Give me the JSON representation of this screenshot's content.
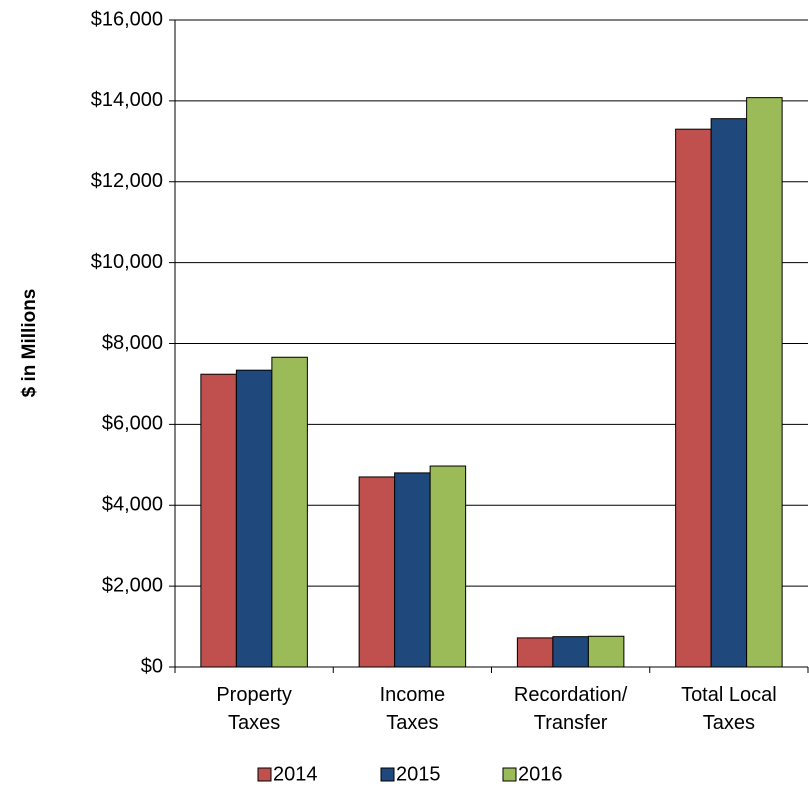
{
  "chart_data": {
    "type": "bar",
    "y_label": "$ in Millions",
    "categories": [
      [
        "Property",
        "Taxes"
      ],
      [
        "Income",
        "Taxes"
      ],
      [
        "Recordation/",
        "Transfer"
      ],
      [
        "Total Local",
        "Taxes"
      ]
    ],
    "series": [
      {
        "name": "2014",
        "color": "#c0504d",
        "values": [
          7240,
          4700,
          720,
          13300
        ]
      },
      {
        "name": "2015",
        "color": "#1f497d",
        "values": [
          7340,
          4800,
          750,
          13560
        ]
      },
      {
        "name": "2016",
        "color": "#9bbb59",
        "values": [
          7660,
          4970,
          760,
          14080
        ]
      }
    ],
    "ylim": [
      0,
      16000
    ],
    "yticks": [
      {
        "value": 0,
        "label": "$0"
      },
      {
        "value": 2000,
        "label": "$2,000"
      },
      {
        "value": 4000,
        "label": "$4,000"
      },
      {
        "value": 6000,
        "label": "$6,000"
      },
      {
        "value": 8000,
        "label": "$8,000"
      },
      {
        "value": 10000,
        "label": "$10,000"
      },
      {
        "value": 12000,
        "label": "$12,000"
      },
      {
        "value": 14000,
        "label": "$14,000"
      },
      {
        "value": 16000,
        "label": "$16,000"
      }
    ],
    "grid": true
  }
}
